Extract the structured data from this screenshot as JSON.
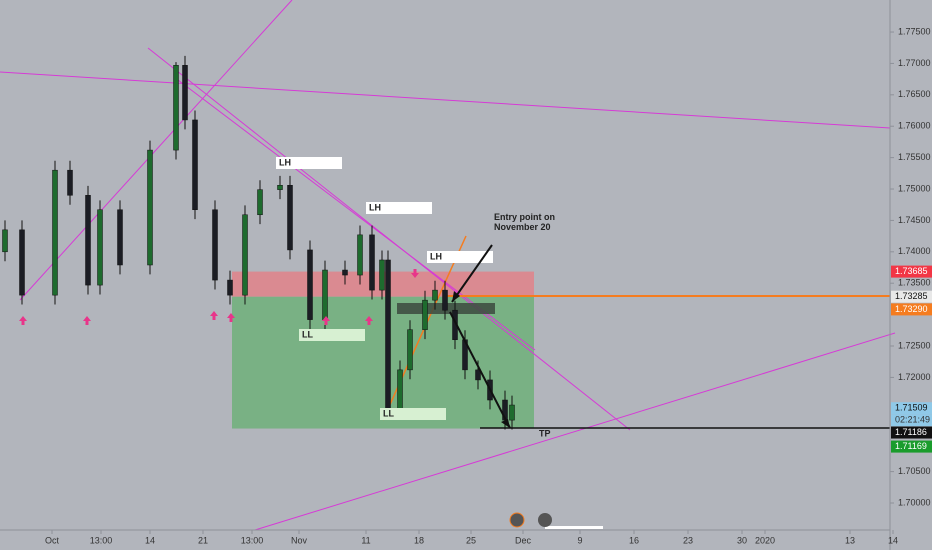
{
  "chart_data": {
    "type": "candlestick",
    "x": [
      1.25,
      5.5,
      13.75,
      17.5,
      22,
      25,
      30,
      37.5,
      44,
      46.25,
      48.75,
      53.75,
      57.5,
      61.25,
      65,
      70,
      72.5,
      77.5,
      81.25,
      86.25,
      90,
      93,
      95.5,
      97,
      100,
      102.5,
      106.25,
      108.75,
      111.25,
      113.75,
      116.25,
      119.5,
      122.5,
      126.25,
      128
    ],
    "open": [
      1.74,
      1.7435,
      1.7331,
      1.753,
      1.749,
      1.7347,
      1.7467,
      1.7379,
      1.7562,
      1.7697,
      1.761,
      1.7467,
      1.7355,
      1.7331,
      1.7459,
      1.7499,
      1.7506,
      1.7403,
      1.7292,
      1.7371,
      1.7363,
      1.7427,
      1.7339,
      1.7387,
      1.7148,
      1.7212,
      1.7276,
      1.7323,
      1.7339,
      1.7307,
      1.726,
      1.7212,
      1.7196,
      1.7164,
      1.7132
    ],
    "high": [
      1.745,
      1.745,
      1.7545,
      1.7545,
      1.7505,
      1.7482,
      1.7482,
      1.7577,
      1.7702,
      1.7712,
      1.7625,
      1.7482,
      1.737,
      1.7474,
      1.7514,
      1.7521,
      1.7521,
      1.7418,
      1.7386,
      1.7386,
      1.7442,
      1.7442,
      1.7402,
      1.7402,
      1.7227,
      1.7291,
      1.7338,
      1.7354,
      1.7354,
      1.7322,
      1.7275,
      1.7227,
      1.7211,
      1.7179,
      1.7171
    ],
    "low": [
      1.7385,
      1.7316,
      1.7316,
      1.7475,
      1.7332,
      1.7332,
      1.7364,
      1.7364,
      1.7547,
      1.7595,
      1.7452,
      1.734,
      1.7316,
      1.7316,
      1.7444,
      1.7484,
      1.7388,
      1.7277,
      1.7277,
      1.7348,
      1.7348,
      1.7324,
      1.7324,
      1.7133,
      1.7133,
      1.7197,
      1.7261,
      1.7308,
      1.7292,
      1.7245,
      1.7197,
      1.7181,
      1.7149,
      1.7117,
      1.7117
    ],
    "close": [
      1.7435,
      1.7331,
      1.753,
      1.749,
      1.7347,
      1.7467,
      1.7379,
      1.7562,
      1.7697,
      1.761,
      1.7467,
      1.7355,
      1.7331,
      1.7459,
      1.7499,
      1.7506,
      1.7403,
      1.7292,
      1.7371,
      1.7363,
      1.7427,
      1.7339,
      1.7387,
      1.7148,
      1.7212,
      1.7276,
      1.7323,
      1.7339,
      1.7307,
      1.726,
      1.7212,
      1.7196,
      1.7164,
      1.7132,
      1.7156
    ],
    "up_color": "#1e6b2e",
    "down_color": "#1b1d24",
    "xlim": [
      0,
      222.5
    ],
    "xticks": [
      {
        "value": 13,
        "label": "Oct"
      },
      {
        "value": 25.25,
        "label": "13:00"
      },
      {
        "value": 37.5,
        "label": "14"
      },
      {
        "value": 50.75,
        "label": "21"
      },
      {
        "value": 63,
        "label": "13:00"
      },
      {
        "value": 74.75,
        "label": "Nov"
      },
      {
        "value": 91.5,
        "label": "11"
      },
      {
        "value": 104.75,
        "label": "18"
      },
      {
        "value": 117.75,
        "label": "25"
      },
      {
        "value": 130.75,
        "label": "Dec"
      },
      {
        "value": 145,
        "label": "9"
      },
      {
        "value": 158.5,
        "label": "16"
      },
      {
        "value": 172,
        "label": "23"
      },
      {
        "value": 185.5,
        "label": "30"
      },
      {
        "value": 191.25,
        "label": "2020"
      },
      {
        "value": 212.5,
        "label": "13"
      },
      {
        "value": 223.25,
        "label": "14"
      }
    ],
    "ylim": [
      1.6957,
      1.7801
    ],
    "yticks": [
      {
        "value": 1.775,
        "label": "1.77500"
      },
      {
        "value": 1.77,
        "label": "1.77000"
      },
      {
        "value": 1.765,
        "label": "1.76500"
      },
      {
        "value": 1.76,
        "label": "1.76000"
      },
      {
        "value": 1.755,
        "label": "1.75500"
      },
      {
        "value": 1.75,
        "label": "1.75000"
      },
      {
        "value": 1.745,
        "label": "1.74500"
      },
      {
        "value": 1.74,
        "label": "1.74000"
      },
      {
        "value": 1.735,
        "label": "1.73500"
      },
      {
        "value": 1.725,
        "label": "1.72500"
      },
      {
        "value": 1.72,
        "label": "1.72000"
      },
      {
        "value": 1.705,
        "label": "1.70500"
      },
      {
        "value": 1.7,
        "label": "1.70000"
      }
    ],
    "position": {
      "x_start": 58,
      "x_end": 133.5,
      "stop": 1.73685,
      "entry": 1.73285,
      "target": 1.71186,
      "stop_color": "#e0838a",
      "target_color": "#6fb07a"
    },
    "price_labels": [
      {
        "value": 1.73685,
        "color": "#f23645"
      },
      {
        "value": 1.73285,
        "color": "#e8e8e8"
      },
      {
        "value": 1.7329,
        "label": "1.73290",
        "color": "#f57c1f"
      },
      {
        "value": 1.71509,
        "color": "#8fc9e8"
      },
      {
        "value": 1.71186,
        "color": "#111111"
      },
      {
        "value": 1.71169,
        "color": "#1a9c2c"
      }
    ],
    "countdown": "02:21:49",
    "annotations": [
      "LH",
      "LH",
      "LH",
      "LL",
      "LL",
      "Entry point on November 20",
      "TP"
    ]
  }
}
